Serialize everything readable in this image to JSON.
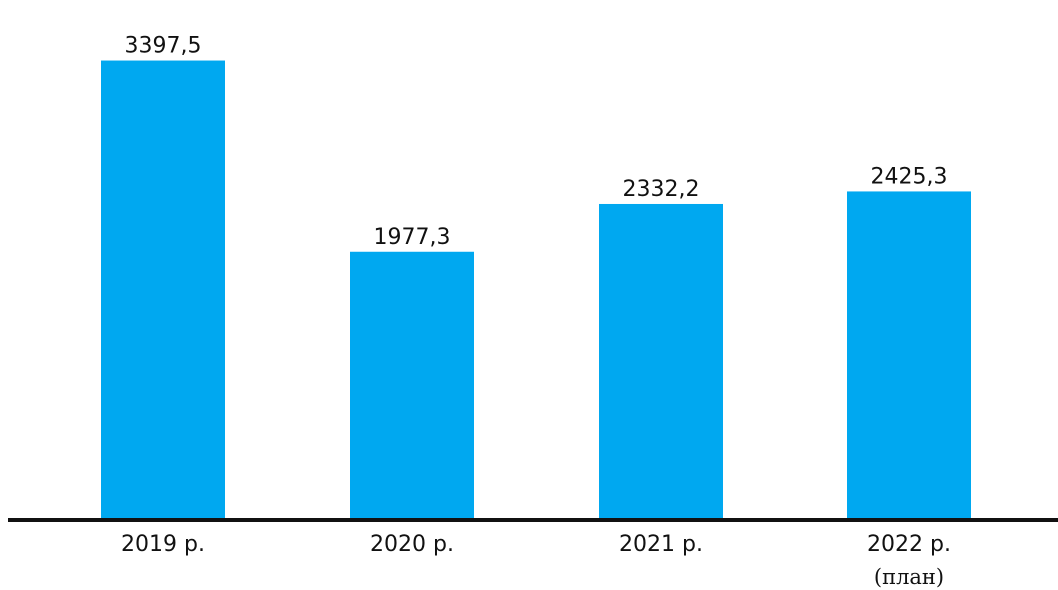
{
  "chart_data": {
    "type": "bar",
    "categories": [
      "2019 р.",
      "2020 р.",
      "2021 р.",
      "2022 р."
    ],
    "category_notes": [
      "",
      "",
      "",
      "(план)"
    ],
    "values": [
      3397.5,
      1977.3,
      2332.2,
      2425.3
    ],
    "value_labels": [
      "3397,5",
      "1977,3",
      "2332,2",
      "2425,3"
    ],
    "ylim": [
      0,
      3550
    ],
    "bar_color": "#00a8f0",
    "axis_color": "#111111",
    "grid": false,
    "legend": "none"
  }
}
